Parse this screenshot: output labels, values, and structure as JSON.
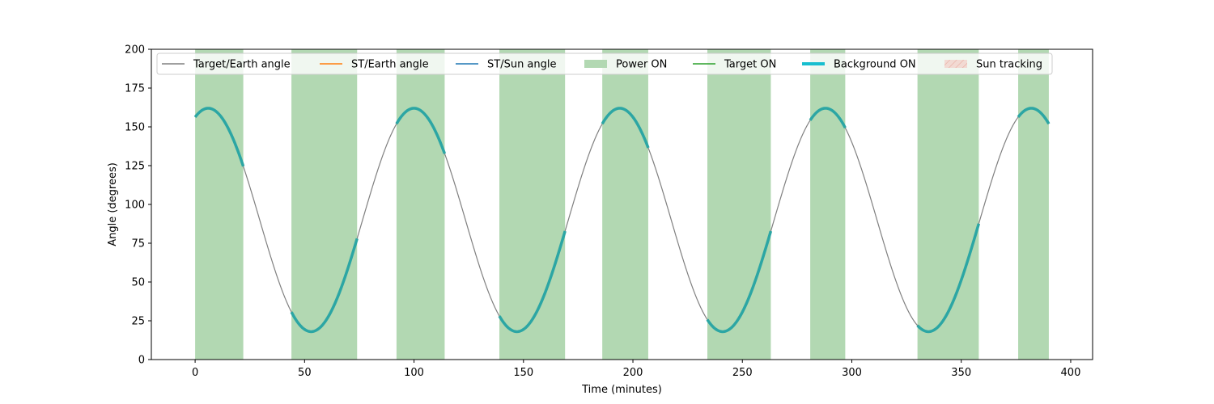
{
  "chart_data": {
    "type": "line",
    "xlabel": "Time (minutes)",
    "ylabel": "Angle (degrees)",
    "xlim": [
      -20,
      410
    ],
    "ylim": [
      0,
      200
    ],
    "xticks": [
      0,
      50,
      100,
      150,
      200,
      250,
      300,
      350,
      400
    ],
    "yticks": [
      0,
      25,
      50,
      75,
      100,
      125,
      150,
      175,
      200
    ],
    "grid": false,
    "legend_position": "top, inside",
    "legend": [
      {
        "label": "Target/Earth angle",
        "kind": "line",
        "color": "#808080"
      },
      {
        "label": "ST/Earth angle",
        "kind": "line",
        "color": "#ff7f0e"
      },
      {
        "label": "ST/Sun angle",
        "kind": "line",
        "color": "#1f77b4"
      },
      {
        "label": "Power ON",
        "kind": "patch",
        "color": "#b2d8b2"
      },
      {
        "label": "Target ON",
        "kind": "line",
        "color": "#2ca02c"
      },
      {
        "label": "Background ON",
        "kind": "thickline",
        "color": "#17becf"
      },
      {
        "label": "Sun tracking",
        "kind": "hatch",
        "color": "#f4c7c0"
      }
    ],
    "target_earth_angle": {
      "name": "Target/Earth angle",
      "model": "sinusoid",
      "mean": 90,
      "amplitude": 72,
      "period_min": 94,
      "peak_times": [
        6,
        100,
        194,
        288,
        382
      ],
      "time_range": [
        0,
        390
      ],
      "color": "#808080"
    },
    "power_on_intervals": [
      [
        0,
        22
      ],
      [
        44,
        74
      ],
      [
        92,
        114
      ],
      [
        139,
        169
      ],
      [
        186,
        207
      ],
      [
        234,
        263
      ],
      [
        281,
        297
      ],
      [
        330,
        358
      ],
      [
        376,
        390
      ]
    ],
    "background_on_intervals": [
      [
        0,
        22
      ],
      [
        44,
        74
      ],
      [
        92,
        114
      ],
      [
        139,
        169
      ],
      [
        186,
        207
      ],
      [
        234,
        263
      ],
      [
        281,
        297
      ],
      [
        330,
        358
      ],
      [
        376,
        390
      ]
    ],
    "power_color": "#b2d8b2",
    "background_color": "#2ca6a4"
  }
}
